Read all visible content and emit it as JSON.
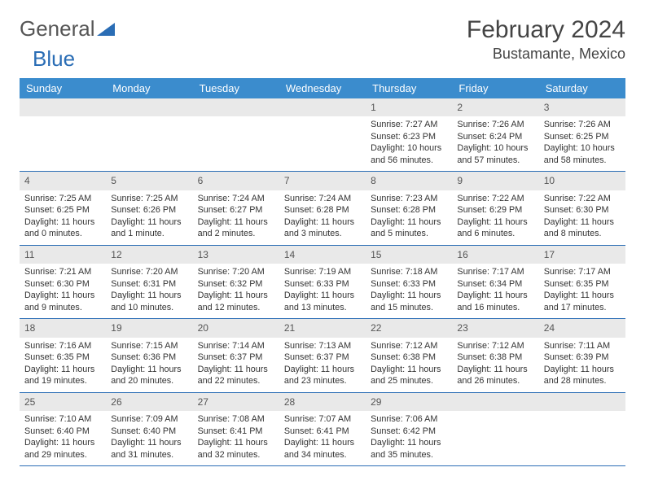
{
  "logo": {
    "text1": "General",
    "text2": "Blue",
    "color1": "#555555",
    "color2": "#2a6db5"
  },
  "title": "February 2024",
  "location": "Bustamante, Mexico",
  "colors": {
    "header_bg": "#3b8ccd",
    "header_fg": "#ffffff",
    "week_border": "#2a6db5",
    "daynum_bg": "#e9e9e9",
    "text": "#333333",
    "background": "#ffffff"
  },
  "typography": {
    "title_fontsize": 30,
    "location_fontsize": 18,
    "dayhead_fontsize": 13,
    "cell_fontsize": 10.8
  },
  "day_headers": [
    "Sunday",
    "Monday",
    "Tuesday",
    "Wednesday",
    "Thursday",
    "Friday",
    "Saturday"
  ],
  "weeks": [
    [
      null,
      null,
      null,
      null,
      {
        "n": "1",
        "sr": "Sunrise: 7:27 AM",
        "ss": "Sunset: 6:23 PM",
        "dl": "Daylight: 10 hours and 56 minutes."
      },
      {
        "n": "2",
        "sr": "Sunrise: 7:26 AM",
        "ss": "Sunset: 6:24 PM",
        "dl": "Daylight: 10 hours and 57 minutes."
      },
      {
        "n": "3",
        "sr": "Sunrise: 7:26 AM",
        "ss": "Sunset: 6:25 PM",
        "dl": "Daylight: 10 hours and 58 minutes."
      }
    ],
    [
      {
        "n": "4",
        "sr": "Sunrise: 7:25 AM",
        "ss": "Sunset: 6:25 PM",
        "dl": "Daylight: 11 hours and 0 minutes."
      },
      {
        "n": "5",
        "sr": "Sunrise: 7:25 AM",
        "ss": "Sunset: 6:26 PM",
        "dl": "Daylight: 11 hours and 1 minute."
      },
      {
        "n": "6",
        "sr": "Sunrise: 7:24 AM",
        "ss": "Sunset: 6:27 PM",
        "dl": "Daylight: 11 hours and 2 minutes."
      },
      {
        "n": "7",
        "sr": "Sunrise: 7:24 AM",
        "ss": "Sunset: 6:28 PM",
        "dl": "Daylight: 11 hours and 3 minutes."
      },
      {
        "n": "8",
        "sr": "Sunrise: 7:23 AM",
        "ss": "Sunset: 6:28 PM",
        "dl": "Daylight: 11 hours and 5 minutes."
      },
      {
        "n": "9",
        "sr": "Sunrise: 7:22 AM",
        "ss": "Sunset: 6:29 PM",
        "dl": "Daylight: 11 hours and 6 minutes."
      },
      {
        "n": "10",
        "sr": "Sunrise: 7:22 AM",
        "ss": "Sunset: 6:30 PM",
        "dl": "Daylight: 11 hours and 8 minutes."
      }
    ],
    [
      {
        "n": "11",
        "sr": "Sunrise: 7:21 AM",
        "ss": "Sunset: 6:30 PM",
        "dl": "Daylight: 11 hours and 9 minutes."
      },
      {
        "n": "12",
        "sr": "Sunrise: 7:20 AM",
        "ss": "Sunset: 6:31 PM",
        "dl": "Daylight: 11 hours and 10 minutes."
      },
      {
        "n": "13",
        "sr": "Sunrise: 7:20 AM",
        "ss": "Sunset: 6:32 PM",
        "dl": "Daylight: 11 hours and 12 minutes."
      },
      {
        "n": "14",
        "sr": "Sunrise: 7:19 AM",
        "ss": "Sunset: 6:33 PM",
        "dl": "Daylight: 11 hours and 13 minutes."
      },
      {
        "n": "15",
        "sr": "Sunrise: 7:18 AM",
        "ss": "Sunset: 6:33 PM",
        "dl": "Daylight: 11 hours and 15 minutes."
      },
      {
        "n": "16",
        "sr": "Sunrise: 7:17 AM",
        "ss": "Sunset: 6:34 PM",
        "dl": "Daylight: 11 hours and 16 minutes."
      },
      {
        "n": "17",
        "sr": "Sunrise: 7:17 AM",
        "ss": "Sunset: 6:35 PM",
        "dl": "Daylight: 11 hours and 17 minutes."
      }
    ],
    [
      {
        "n": "18",
        "sr": "Sunrise: 7:16 AM",
        "ss": "Sunset: 6:35 PM",
        "dl": "Daylight: 11 hours and 19 minutes."
      },
      {
        "n": "19",
        "sr": "Sunrise: 7:15 AM",
        "ss": "Sunset: 6:36 PM",
        "dl": "Daylight: 11 hours and 20 minutes."
      },
      {
        "n": "20",
        "sr": "Sunrise: 7:14 AM",
        "ss": "Sunset: 6:37 PM",
        "dl": "Daylight: 11 hours and 22 minutes."
      },
      {
        "n": "21",
        "sr": "Sunrise: 7:13 AM",
        "ss": "Sunset: 6:37 PM",
        "dl": "Daylight: 11 hours and 23 minutes."
      },
      {
        "n": "22",
        "sr": "Sunrise: 7:12 AM",
        "ss": "Sunset: 6:38 PM",
        "dl": "Daylight: 11 hours and 25 minutes."
      },
      {
        "n": "23",
        "sr": "Sunrise: 7:12 AM",
        "ss": "Sunset: 6:38 PM",
        "dl": "Daylight: 11 hours and 26 minutes."
      },
      {
        "n": "24",
        "sr": "Sunrise: 7:11 AM",
        "ss": "Sunset: 6:39 PM",
        "dl": "Daylight: 11 hours and 28 minutes."
      }
    ],
    [
      {
        "n": "25",
        "sr": "Sunrise: 7:10 AM",
        "ss": "Sunset: 6:40 PM",
        "dl": "Daylight: 11 hours and 29 minutes."
      },
      {
        "n": "26",
        "sr": "Sunrise: 7:09 AM",
        "ss": "Sunset: 6:40 PM",
        "dl": "Daylight: 11 hours and 31 minutes."
      },
      {
        "n": "27",
        "sr": "Sunrise: 7:08 AM",
        "ss": "Sunset: 6:41 PM",
        "dl": "Daylight: 11 hours and 32 minutes."
      },
      {
        "n": "28",
        "sr": "Sunrise: 7:07 AM",
        "ss": "Sunset: 6:41 PM",
        "dl": "Daylight: 11 hours and 34 minutes."
      },
      {
        "n": "29",
        "sr": "Sunrise: 7:06 AM",
        "ss": "Sunset: 6:42 PM",
        "dl": "Daylight: 11 hours and 35 minutes."
      },
      null,
      null
    ]
  ]
}
